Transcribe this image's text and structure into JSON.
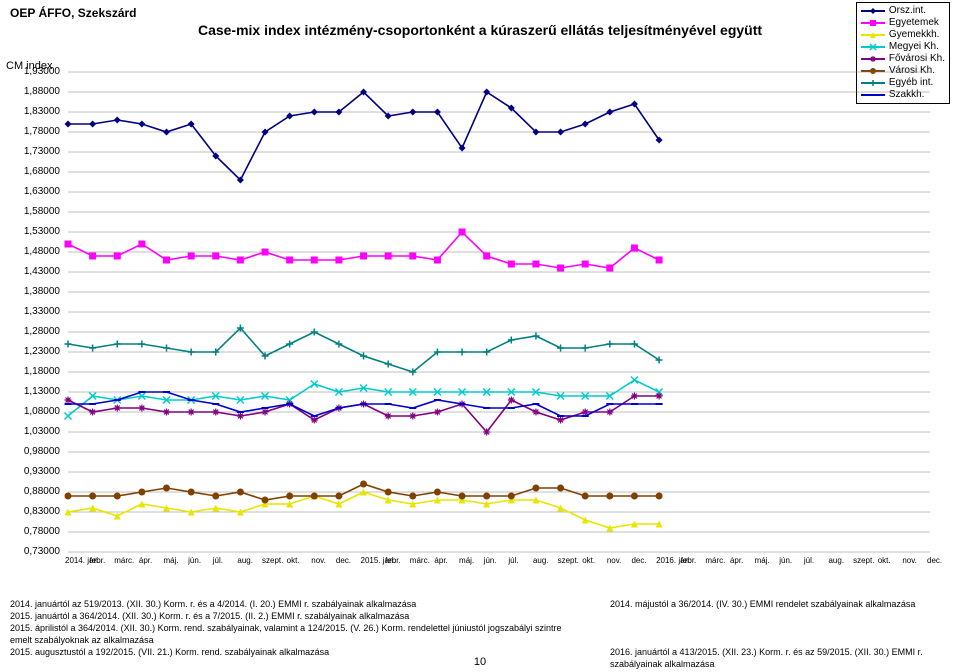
{
  "header_left": "OEP ÁFFO, Szekszárd",
  "title": "Case-mix index intézmény-csoportonként a kúraszerű ellátás teljesítményével együtt",
  "yaxis_label": "CM index",
  "page_number": "10",
  "chart": {
    "type": "line",
    "background_color": "#ffffff",
    "grid_color": "#808080",
    "ylim": [
      0.73,
      1.93
    ],
    "ytick_step": 0.05,
    "yticks": [
      "1,93000",
      "1,88000",
      "1,83000",
      "1,78000",
      "1,73000",
      "1,68000",
      "1,63000",
      "1,58000",
      "1,53000",
      "1,48000",
      "1,43000",
      "1,38000",
      "1,33000",
      "1,28000",
      "1,23000",
      "1,18000",
      "1,13000",
      "1,08000",
      "1,03000",
      "0,98000",
      "0,93000",
      "0,88000",
      "0,83000",
      "0,78000",
      "0,73000"
    ],
    "xlabels": [
      "2014. jan.",
      "febr.",
      "márc.",
      "ápr.",
      "máj.",
      "jún.",
      "júl.",
      "aug.",
      "szept.",
      "okt.",
      "nov.",
      "dec.",
      "2015. jan.",
      "febr.",
      "márc.",
      "ápr.",
      "máj.",
      "jún.",
      "júl.",
      "aug.",
      "szept.",
      "okt.",
      "nov.",
      "dec.",
      "2016. jan.",
      "febr.",
      "márc.",
      "ápr.",
      "máj.",
      "jún.",
      "júl.",
      "aug.",
      "szept.",
      "okt.",
      "nov.",
      "dec."
    ],
    "n_points": 25,
    "line_width": 1.6,
    "marker_size": 5,
    "series": [
      {
        "name": "Orsz.int.",
        "color": "#000080",
        "marker": "diamond",
        "data": [
          1.8,
          1.8,
          1.81,
          1.8,
          1.78,
          1.8,
          1.72,
          1.66,
          1.78,
          1.82,
          1.83,
          1.83,
          1.88,
          1.82,
          1.83,
          1.83,
          1.74,
          1.88,
          1.84,
          1.78,
          1.78,
          1.8,
          1.83,
          1.85,
          1.76
        ]
      },
      {
        "name": "Egyetemek",
        "color": "#ff00ff",
        "marker": "square",
        "data": [
          1.5,
          1.47,
          1.47,
          1.5,
          1.46,
          1.47,
          1.47,
          1.46,
          1.48,
          1.46,
          1.46,
          1.46,
          1.47,
          1.47,
          1.47,
          1.46,
          1.53,
          1.47,
          1.45,
          1.45,
          1.44,
          1.45,
          1.44,
          1.49,
          1.46
        ]
      },
      {
        "name": "Gyemekkh.",
        "color": "#e6e600",
        "marker": "triangle",
        "data": [
          0.83,
          0.84,
          0.82,
          0.85,
          0.84,
          0.83,
          0.84,
          0.83,
          0.85,
          0.85,
          0.87,
          0.85,
          0.88,
          0.86,
          0.85,
          0.86,
          0.86,
          0.85,
          0.86,
          0.86,
          0.84,
          0.81,
          0.79,
          0.8,
          0.8
        ]
      },
      {
        "name": "Megyei Kh.",
        "color": "#00cccc",
        "marker": "x",
        "data": [
          1.07,
          1.12,
          1.11,
          1.12,
          1.11,
          1.11,
          1.12,
          1.11,
          1.12,
          1.11,
          1.15,
          1.13,
          1.14,
          1.13,
          1.13,
          1.13,
          1.13,
          1.13,
          1.13,
          1.13,
          1.12,
          1.12,
          1.12,
          1.16,
          1.13
        ]
      },
      {
        "name": "Fővárosi Kh.",
        "color": "#800080",
        "marker": "star",
        "data": [
          1.11,
          1.08,
          1.09,
          1.09,
          1.08,
          1.08,
          1.08,
          1.07,
          1.08,
          1.1,
          1.06,
          1.09,
          1.1,
          1.07,
          1.07,
          1.08,
          1.1,
          1.03,
          1.11,
          1.08,
          1.06,
          1.08,
          1.08,
          1.12,
          1.12
        ]
      },
      {
        "name": "Városi Kh.",
        "color": "#804000",
        "marker": "circle",
        "data": [
          0.87,
          0.87,
          0.87,
          0.88,
          0.89,
          0.88,
          0.87,
          0.88,
          0.86,
          0.87,
          0.87,
          0.87,
          0.9,
          0.88,
          0.87,
          0.88,
          0.87,
          0.87,
          0.87,
          0.89,
          0.89,
          0.87,
          0.87,
          0.87,
          0.87
        ]
      },
      {
        "name": "Egyéb int.",
        "color": "#008080",
        "marker": "plus",
        "data": [
          1.25,
          1.24,
          1.25,
          1.25,
          1.24,
          1.23,
          1.23,
          1.29,
          1.22,
          1.25,
          1.28,
          1.25,
          1.22,
          1.2,
          1.18,
          1.23,
          1.23,
          1.23,
          1.26,
          1.27,
          1.24,
          1.24,
          1.25,
          1.25,
          1.21
        ]
      },
      {
        "name": "Szakkh.",
        "color": "#0000cc",
        "marker": "dash",
        "data": [
          1.1,
          1.1,
          1.11,
          1.13,
          1.13,
          1.11,
          1.1,
          1.08,
          1.09,
          1.1,
          1.07,
          1.09,
          1.1,
          1.1,
          1.09,
          1.11,
          1.1,
          1.09,
          1.09,
          1.1,
          1.07,
          1.07,
          1.1,
          1.1,
          1.1
        ]
      }
    ]
  },
  "legend_items": [
    {
      "label": "Orsz.int.",
      "color": "#000080",
      "marker": "diamond"
    },
    {
      "label": "Egyetemek",
      "color": "#ff00ff",
      "marker": "square"
    },
    {
      "label": "Gyemekkh.",
      "color": "#e6e600",
      "marker": "triangle"
    },
    {
      "label": "Megyei Kh.",
      "color": "#00cccc",
      "marker": "x"
    },
    {
      "label": "Fővárosi Kh.",
      "color": "#800080",
      "marker": "star"
    },
    {
      "label": "Városi Kh.",
      "color": "#804000",
      "marker": "circle"
    },
    {
      "label": "Egyéb int.",
      "color": "#008080",
      "marker": "plus"
    },
    {
      "label": "Szakkh.",
      "color": "#0000cc",
      "marker": "dash"
    }
  ],
  "footnotes": {
    "left": [
      "2014. januártól az 519/2013. (XII. 30.) Korm. r. és a 4/2014. (I. 20.) EMMI r. szabályainak alkalmazása",
      "2015. januártól a 364/2014. (XII. 30.) Korm. r. és a 7/2015. (II. 2.) EMMI r. szabályainak alkalmazása",
      "2015. áprilistól a 364/2014. (XII. 30.) Korm. rend. szabályainak, valamint a 124/2015. (V. 26.) Korm. rendelettel júniustól jogszabályi szintre emelt szabályoknak az alkalmazása",
      "2015. augusztustól a 192/2015. (VII. 21.) Korm. rend. szabályainak alkalmazása"
    ],
    "right": [
      "2014. májustól a 36/2014. (IV. 30.) EMMI rendelet szabályainak alkalmazása",
      "",
      "",
      "2016. januártól a 413/2015. (XII. 23.) Korm. r. és az 59/2015. (XII. 30.) EMMI r. szabályainak alkalmazása"
    ]
  }
}
